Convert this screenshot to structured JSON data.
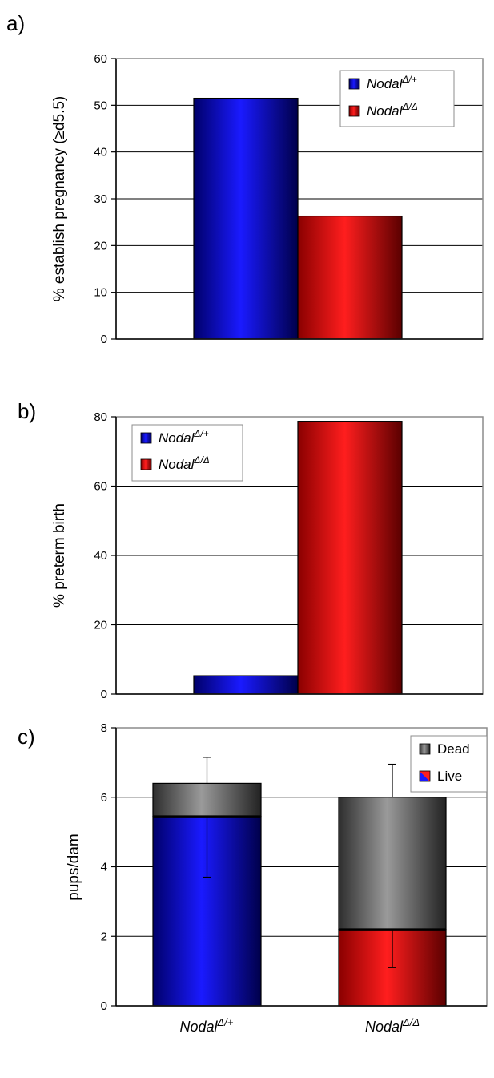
{
  "panel_labels": [
    "a)",
    "b)",
    "c)"
  ],
  "colors": {
    "blue": "#0a0adc",
    "red": "#ee1111",
    "gray": "#7a7a7a"
  },
  "chart_data": [
    {
      "type": "bar",
      "panel": "a)",
      "ylabel": "% establish pregnancy (≥d5.5)",
      "ylim": [
        0,
        60
      ],
      "yticks": [
        "0",
        "10",
        "20",
        "30",
        "40",
        "50",
        "60"
      ],
      "grid": true,
      "legend_position": "top-right",
      "series": [
        {
          "name": "Nodal",
          "sup": "Δ/+",
          "color": "blue",
          "values": [
            51.5
          ]
        },
        {
          "name": "Nodal",
          "sup": "Δ/Δ",
          "color": "red",
          "values": [
            26.3
          ]
        }
      ]
    },
    {
      "type": "bar",
      "panel": "b)",
      "ylabel": "% preterm birth",
      "ylim": [
        0,
        80
      ],
      "yticks": [
        "0",
        "20",
        "40",
        "60",
        "80"
      ],
      "grid": true,
      "legend_position": "top-left",
      "series": [
        {
          "name": "Nodal",
          "sup": "Δ/+",
          "color": "blue",
          "values": [
            5.3
          ]
        },
        {
          "name": "Nodal",
          "sup": "Δ/Δ",
          "color": "red",
          "values": [
            78.7
          ]
        }
      ]
    },
    {
      "type": "bar",
      "stacked": true,
      "panel": "c)",
      "ylabel": "pups/dam",
      "ylim": [
        0,
        8
      ],
      "yticks": [
        "0",
        "2",
        "4",
        "6",
        "8"
      ],
      "grid": true,
      "legend_position": "top-right",
      "categories": [
        {
          "name": "Nodal",
          "sup": "Δ/+"
        },
        {
          "name": "Nodal",
          "sup": "Δ/Δ"
        }
      ],
      "series": [
        {
          "name": "Live",
          "colors": [
            "blue",
            "red"
          ],
          "values": [
            5.45,
            2.2
          ],
          "error_low": [
            3.7,
            1.1
          ]
        },
        {
          "name": "Dead",
          "color": "gray",
          "values": [
            0.95,
            3.8
          ],
          "error_high": [
            7.15,
            6.95
          ]
        }
      ]
    }
  ]
}
